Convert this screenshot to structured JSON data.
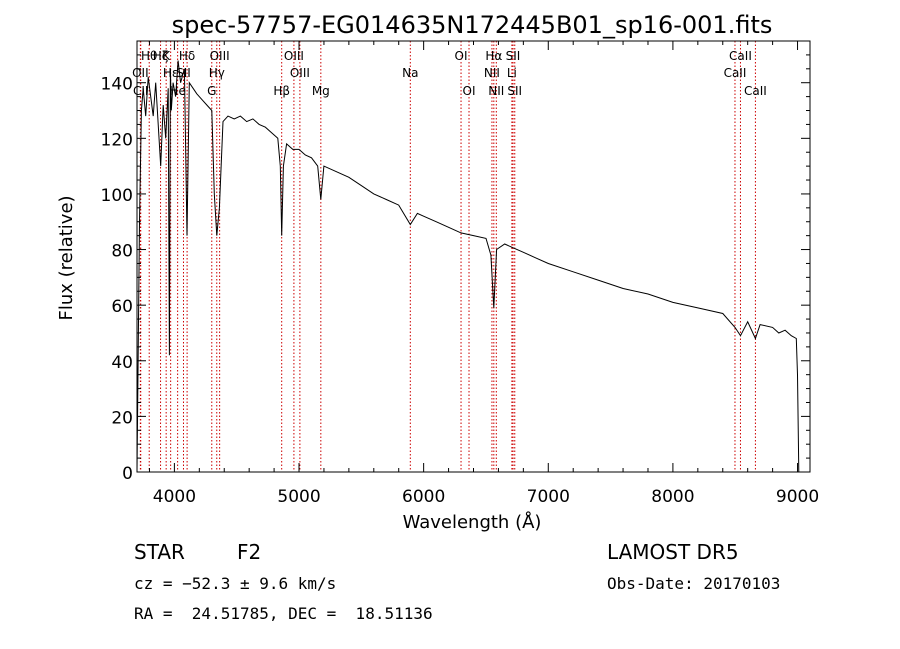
{
  "chart_data": {
    "type": "line",
    "title": "spec-57757-EG014635N172445B01_sp16-001.fits",
    "xlabel": "Wavelength (Å)",
    "ylabel": "Flux (relative)",
    "xlim": [
      3700,
      9100
    ],
    "ylim": [
      0,
      155
    ],
    "xticks": [
      4000,
      5000,
      6000,
      7000,
      8000,
      9000
    ],
    "yticks": [
      0,
      20,
      40,
      60,
      80,
      100,
      120,
      140
    ],
    "grid": false,
    "series": [
      {
        "x": [
          3700,
          3720,
          3735,
          3750,
          3770,
          3790,
          3810,
          3830,
          3850,
          3870,
          3890,
          3910,
          3930,
          3950,
          3960,
          3968,
          3975,
          3990,
          4010,
          4030,
          4050,
          4080,
          4101,
          4120,
          4150,
          4180,
          4220,
          4260,
          4300,
          4320,
          4340,
          4361,
          4390,
          4430,
          4480,
          4530,
          4580,
          4630,
          4680,
          4730,
          4780,
          4830,
          4850,
          4861,
          4875,
          4900,
          4950,
          5000,
          5050,
          5100,
          5150,
          5175,
          5200,
          5300,
          5400,
          5500,
          5600,
          5700,
          5800,
          5893,
          5950,
          6000,
          6100,
          6200,
          6300,
          6400,
          6500,
          6540,
          6563,
          6585,
          6650,
          6700,
          6800,
          6900,
          7000,
          7200,
          7400,
          7600,
          7800,
          8000,
          8200,
          8400,
          8498,
          8542,
          8600,
          8662,
          8700,
          8800,
          8850,
          8900,
          8950,
          8990,
          9000,
          9010
        ],
        "y": [
          0,
          90,
          130,
          138,
          128,
          142,
          135,
          128,
          140,
          125,
          110,
          132,
          120,
          138,
          42,
          145,
          130,
          140,
          135,
          148,
          140,
          145,
          85,
          140,
          138,
          136,
          134,
          132,
          130,
          100,
          85,
          95,
          126,
          128,
          127,
          128,
          126,
          127,
          125,
          124,
          122,
          120,
          110,
          85,
          110,
          118,
          116,
          116,
          114,
          113,
          110,
          98,
          110,
          108,
          106,
          103,
          100,
          98,
          96,
          89,
          93,
          92,
          90,
          88,
          86,
          85,
          84,
          78,
          59,
          80,
          82,
          81,
          79,
          77,
          75,
          72,
          69,
          66,
          64,
          61,
          59,
          57,
          52,
          49,
          54,
          48,
          53,
          52,
          50,
          51,
          49,
          48,
          35,
          0
        ]
      }
    ],
    "lines": [
      {
        "wavelength": 3727,
        "label": "OII",
        "row": 2
      },
      {
        "wavelength": 3730,
        "label": "CII",
        "row": 3
      },
      {
        "wavelength": 3798,
        "label": "Hθ",
        "row": 1
      },
      {
        "wavelength": 3889,
        "label": "Hζ",
        "row": 1
      },
      {
        "wavelength": 3934,
        "label": "K",
        "row": 1
      },
      {
        "wavelength": 3970,
        "label": "Hε",
        "row": 2
      },
      {
        "wavelength": 4026,
        "label": "He",
        "row": 3
      },
      {
        "wavelength": 4073,
        "label": "SII",
        "row": 2
      },
      {
        "wavelength": 4102,
        "label": "Hδ",
        "row": 1
      },
      {
        "wavelength": 4300,
        "label": "G",
        "row": 3
      },
      {
        "wavelength": 4340,
        "label": "Hγ",
        "row": 2
      },
      {
        "wavelength": 4363,
        "label": "OIII",
        "row": 1
      },
      {
        "wavelength": 4861,
        "label": "Hβ",
        "row": 3
      },
      {
        "wavelength": 4959,
        "label": "OIII",
        "row": 1
      },
      {
        "wavelength": 5007,
        "label": "OIII",
        "row": 2
      },
      {
        "wavelength": 5175,
        "label": "Mg",
        "row": 3
      },
      {
        "wavelength": 5893,
        "label": "Na",
        "row": 2
      },
      {
        "wavelength": 6300,
        "label": "OI",
        "row": 1
      },
      {
        "wavelength": 6364,
        "label": "OI",
        "row": 3
      },
      {
        "wavelength": 6548,
        "label": "NII",
        "row": 2
      },
      {
        "wavelength": 6563,
        "label": "Hα",
        "row": 1
      },
      {
        "wavelength": 6583,
        "label": "NII",
        "row": 3
      },
      {
        "wavelength": 6708,
        "label": "Li",
        "row": 2
      },
      {
        "wavelength": 6717,
        "label": "SII",
        "row": 1
      },
      {
        "wavelength": 6731,
        "label": "SII",
        "row": 3
      },
      {
        "wavelength": 8498,
        "label": "CaII",
        "row": 2
      },
      {
        "wavelength": 8542,
        "label": "CaII",
        "row": 1
      },
      {
        "wavelength": 8662,
        "label": "CaII",
        "row": 3
      }
    ]
  },
  "info": {
    "class_type": "STAR",
    "subclass": "F2",
    "survey": "LAMOST DR5",
    "cz": "cz = −52.3 ± 9.6 km/s",
    "obs_date": "Obs-Date: 20170103",
    "radec": "RA =  24.51785, DEC =  18.51136"
  },
  "colors": {
    "spectrum": "#000000",
    "line_marker": "#cc0000",
    "axis": "#000000"
  }
}
